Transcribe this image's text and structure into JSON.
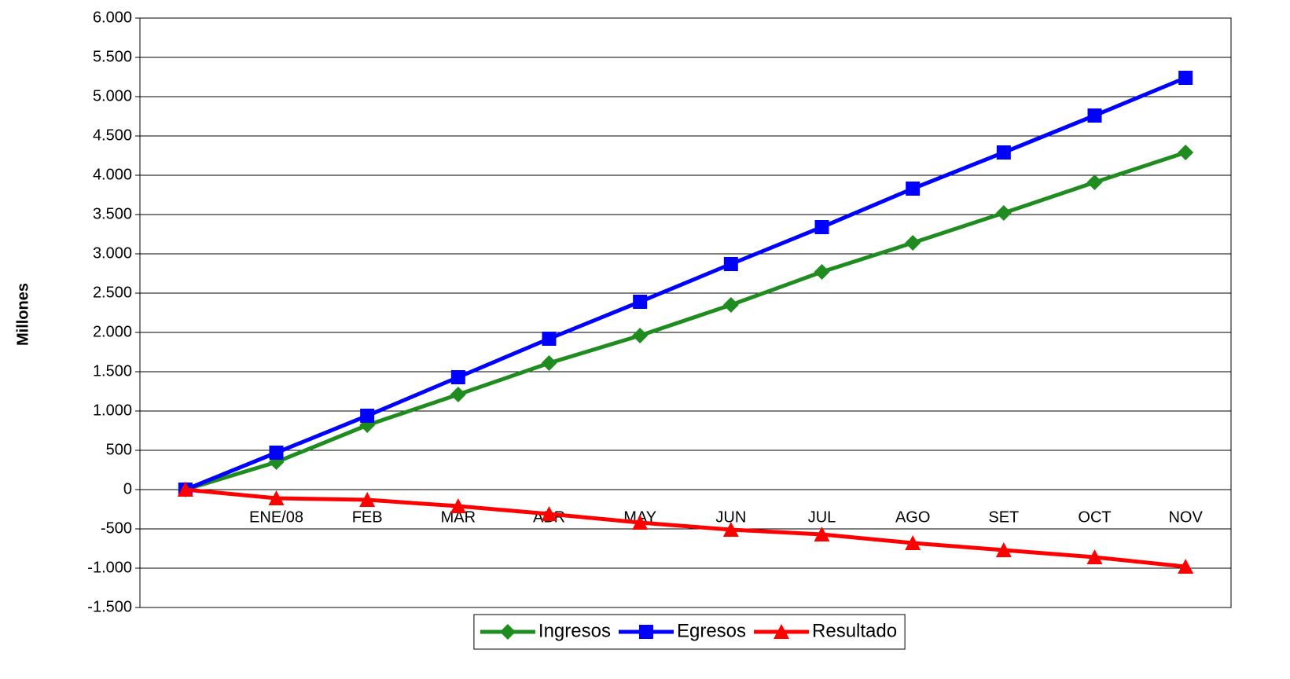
{
  "chart_data": {
    "type": "line",
    "y_label": "Millones",
    "categories": [
      null,
      "ENE/08",
      "FEB",
      "MAR",
      "ABR",
      "MAY",
      "JUN",
      "JUL",
      "AGO",
      "SET",
      "OCT",
      "NOV"
    ],
    "series": [
      {
        "name": "Ingresos",
        "color": "#1f8c1f",
        "marker": "diamond",
        "values": [
          0,
          350,
          820,
          1210,
          1610,
          1960,
          2350,
          2770,
          3140,
          3520,
          3910,
          4290
        ]
      },
      {
        "name": "Egresos",
        "color": "#0000ff",
        "marker": "square",
        "values": [
          0,
          470,
          940,
          1430,
          1920,
          2390,
          2870,
          3340,
          3830,
          4290,
          4760,
          5240
        ]
      },
      {
        "name": "Resultado",
        "color": "#ff0000",
        "marker": "triangle",
        "values": [
          0,
          -110,
          -130,
          -210,
          -310,
          -420,
          -510,
          -570,
          -680,
          -770,
          -860,
          -980
        ]
      }
    ],
    "ylim": [
      -1500,
      6000
    ],
    "yticks": [
      {
        "value": -1500,
        "label": "-1.500"
      },
      {
        "value": -1000,
        "label": "-1.000"
      },
      -500,
      0,
      500,
      {
        "value": 1000,
        "label": "1.000"
      },
      {
        "value": 1500,
        "label": "1.500"
      },
      {
        "value": 2000,
        "label": "2.000"
      },
      {
        "value": 2500,
        "label": "2.500"
      },
      {
        "value": 3000,
        "label": "3.000"
      },
      {
        "value": 3500,
        "label": "3.500"
      },
      {
        "value": 4000,
        "label": "4.000"
      },
      {
        "value": 4500,
        "label": "4.500"
      },
      {
        "value": 5000,
        "label": "5.000"
      },
      {
        "value": 5500,
        "label": "5.500"
      },
      {
        "value": 6000,
        "label": "6.000"
      }
    ],
    "grid": true,
    "legend": "bottom"
  }
}
